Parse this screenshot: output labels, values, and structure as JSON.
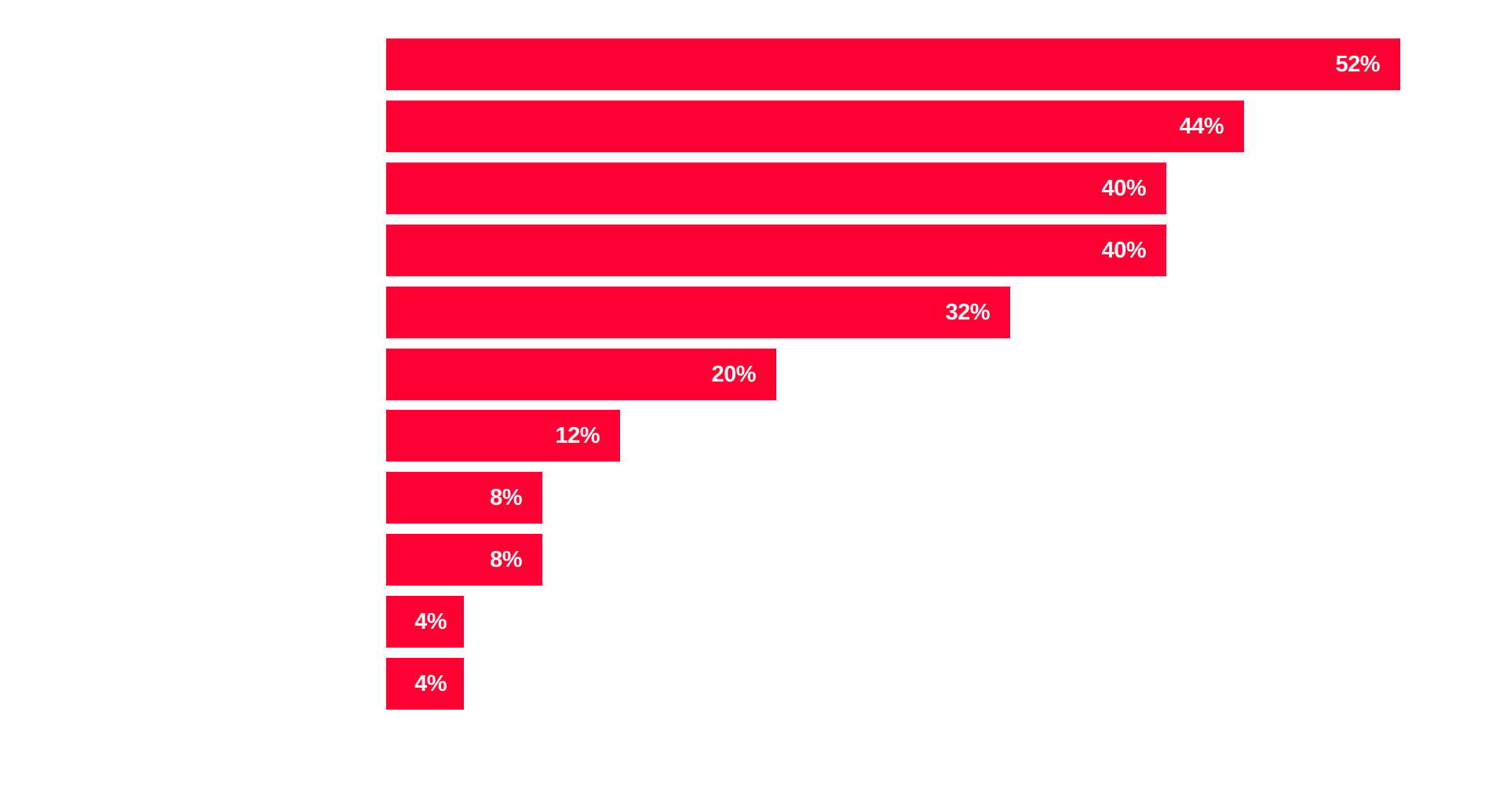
{
  "chart_data": {
    "type": "bar",
    "orientation": "horizontal",
    "title": "",
    "xlabel": "",
    "ylabel": "",
    "categories": [
      "",
      "",
      "",
      "",
      "",
      "",
      "",
      "",
      "",
      "",
      ""
    ],
    "values": [
      52,
      44,
      40,
      40,
      32,
      20,
      12,
      8,
      8,
      4,
      4
    ],
    "labels": [
      "52%",
      "44%",
      "40%",
      "40%",
      "32%",
      "20%",
      "12%",
      "8%",
      "8%",
      "4%",
      "4%"
    ],
    "unit": "%",
    "xlim": [
      0,
      52
    ],
    "grid": false,
    "legend": null,
    "bar_color": "#FF0033",
    "label_color": "#FFFFFF"
  }
}
